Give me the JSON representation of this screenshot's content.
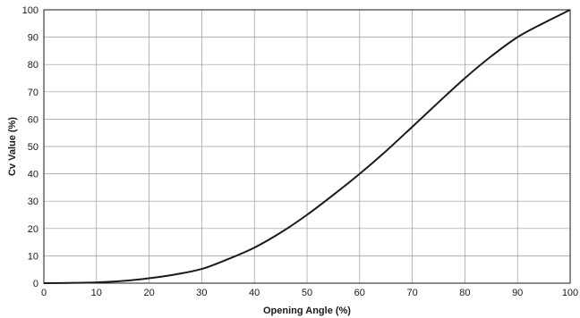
{
  "chart_data": {
    "type": "line",
    "title": "",
    "xlabel": "Opening Angle (%)",
    "ylabel": "Cv Value (%)",
    "xlim": [
      0,
      100
    ],
    "ylim": [
      0,
      100
    ],
    "x_ticks": [
      0,
      10,
      20,
      30,
      40,
      50,
      60,
      70,
      80,
      90,
      100
    ],
    "y_ticks": [
      0,
      10,
      20,
      30,
      40,
      50,
      60,
      70,
      80,
      90,
      100
    ],
    "grid": true,
    "legend": "none",
    "series": [
      {
        "color": "#1a1a1a",
        "x": [
          0,
          5,
          10,
          15,
          20,
          25,
          30,
          35,
          40,
          45,
          50,
          55,
          60,
          65,
          70,
          75,
          80,
          85,
          90,
          95,
          100
        ],
        "y": [
          0,
          0.1,
          0.3,
          0.8,
          1.8,
          3.2,
          5.2,
          8.8,
          13,
          18.5,
          25,
          32.3,
          40,
          48.3,
          57.2,
          66.2,
          75,
          83,
          90,
          95.2,
          100
        ]
      }
    ]
  }
}
